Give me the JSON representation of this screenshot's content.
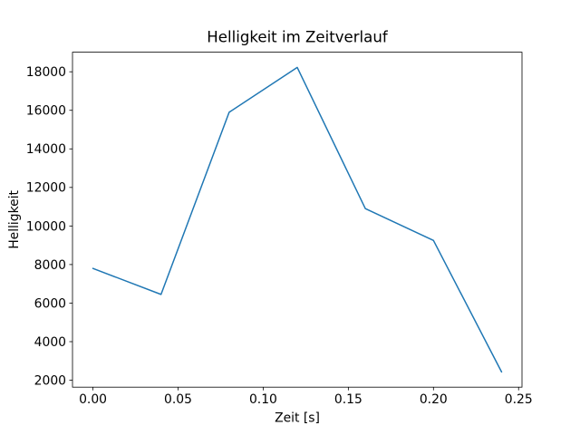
{
  "chart_data": {
    "type": "line",
    "title": "Helligkeit im Zeitverlauf",
    "xlabel": "Zeit [s]",
    "ylabel": "Helligkeit",
    "x": [
      0.0,
      0.04,
      0.08,
      0.12,
      0.16,
      0.2,
      0.24
    ],
    "y": [
      7800,
      6450,
      15900,
      18225,
      10900,
      9250,
      2430
    ],
    "series_name": "Helligkeit",
    "xlim": [
      -0.012,
      0.252
    ],
    "ylim": [
      1640,
      19015
    ],
    "xticks": {
      "values": [
        0.0,
        0.05,
        0.1,
        0.15,
        0.2,
        0.25
      ],
      "labels": [
        "0.00",
        "0.05",
        "0.10",
        "0.15",
        "0.20",
        "0.25"
      ]
    },
    "yticks": {
      "values": [
        2000,
        4000,
        6000,
        8000,
        10000,
        12000,
        14000,
        16000,
        18000
      ],
      "labels": [
        "2000",
        "4000",
        "6000",
        "8000",
        "10000",
        "12000",
        "14000",
        "16000",
        "18000"
      ]
    },
    "grid": false,
    "legend": null,
    "line_color": "#1f77b4",
    "line_width": 1.5,
    "spine_color": "#000000",
    "text_color": "#000000",
    "background": "#ffffff"
  }
}
